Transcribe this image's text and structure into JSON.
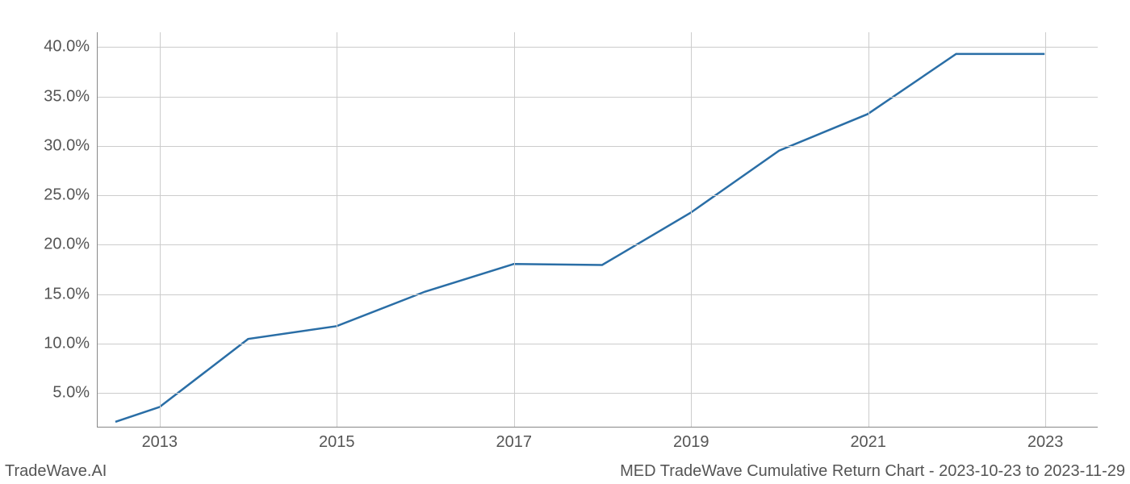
{
  "chart": {
    "type": "line",
    "x_years": [
      2012.5,
      2013,
      2014,
      2015,
      2016,
      2017,
      2018,
      2019,
      2020,
      2021,
      2022,
      2023
    ],
    "y_values": [
      2.0,
      3.5,
      10.4,
      11.7,
      15.2,
      18.0,
      17.9,
      23.2,
      29.5,
      33.2,
      39.3,
      39.3
    ],
    "line_color": "#2a6ea6",
    "line_width": 2.5,
    "x_ticks": [
      2013,
      2015,
      2017,
      2019,
      2021,
      2023
    ],
    "x_tick_labels": [
      "2013",
      "2015",
      "2017",
      "2019",
      "2021",
      "2023"
    ],
    "y_ticks": [
      5,
      10,
      15,
      20,
      25,
      30,
      35,
      40
    ],
    "y_tick_labels": [
      "5.0%",
      "10.0%",
      "15.0%",
      "20.0%",
      "25.0%",
      "30.0%",
      "35.0%",
      "40.0%"
    ],
    "xlim": [
      2012.3,
      2023.6
    ],
    "ylim": [
      1.5,
      41.5
    ],
    "grid_color": "#cccccc",
    "axis_color": "#888888",
    "background_color": "#ffffff",
    "tick_font_size": 20,
    "tick_color": "#555555"
  },
  "footer": {
    "left": "TradeWave.AI",
    "right": "MED TradeWave Cumulative Return Chart - 2023-10-23 to 2023-11-29",
    "font_size": 20,
    "color": "#555555"
  }
}
